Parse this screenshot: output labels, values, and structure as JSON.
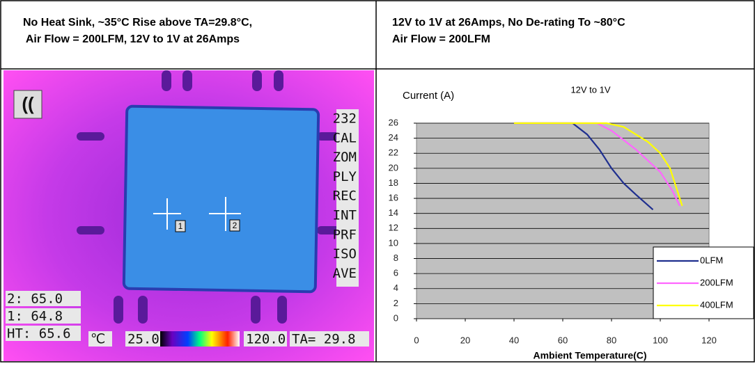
{
  "header": {
    "left": [
      "No Heat Sink, ~35°C Rise above TA=29.8°C,",
      " Air Flow = 200LFM, 12V to 1V at 26Amps"
    ],
    "right": [
      "12V to 1V at 26Amps, No De-rating To ~80°C",
      "Air Flow = 200LFM"
    ]
  },
  "thermal": {
    "menu": [
      "232",
      "CAL",
      "ZOM",
      "PLY",
      "REC",
      "INT",
      "PRF",
      "ISO",
      "AVE"
    ],
    "readings": [
      "2:  65.0",
      "1:  64.8",
      "HT: 65.6"
    ],
    "unit": "℃",
    "scale_min": "25.0",
    "scale_max": "120.0",
    "ambient": "TA= 29.8",
    "markers": [
      "1",
      "2"
    ]
  },
  "chart_data": {
    "type": "line",
    "title": "12V to 1V",
    "y_label": "Current (A)",
    "x_label": "Ambient Temperature(C)",
    "xlim": [
      0,
      120
    ],
    "xticks": [
      0,
      20,
      40,
      60,
      80,
      100,
      120
    ],
    "ylim": [
      0,
      26
    ],
    "yticks": [
      0,
      2,
      4,
      6,
      8,
      10,
      12,
      14,
      16,
      18,
      20,
      22,
      24,
      26
    ],
    "grid": true,
    "legend": "lower right",
    "series": [
      {
        "name": "0LFM",
        "color": "#1f2f8f",
        "x": [
          40,
          64,
          70,
          75,
          80,
          85,
          90,
          97
        ],
        "values": [
          26,
          26,
          24.5,
          22.5,
          20,
          18,
          16.5,
          14.5
        ]
      },
      {
        "name": "200LFM",
        "color": "#ff66ff",
        "x": [
          40,
          74,
          80,
          90,
          100,
          105,
          108
        ],
        "values": [
          26,
          26,
          25,
          22.5,
          19.5,
          17,
          15
        ]
      },
      {
        "name": "400LFM",
        "color": "#ffff00",
        "x": [
          40,
          78,
          85,
          95,
          100,
          104,
          107,
          109
        ],
        "values": [
          26,
          26,
          25.5,
          23.5,
          22,
          20,
          17,
          15
        ]
      }
    ]
  }
}
